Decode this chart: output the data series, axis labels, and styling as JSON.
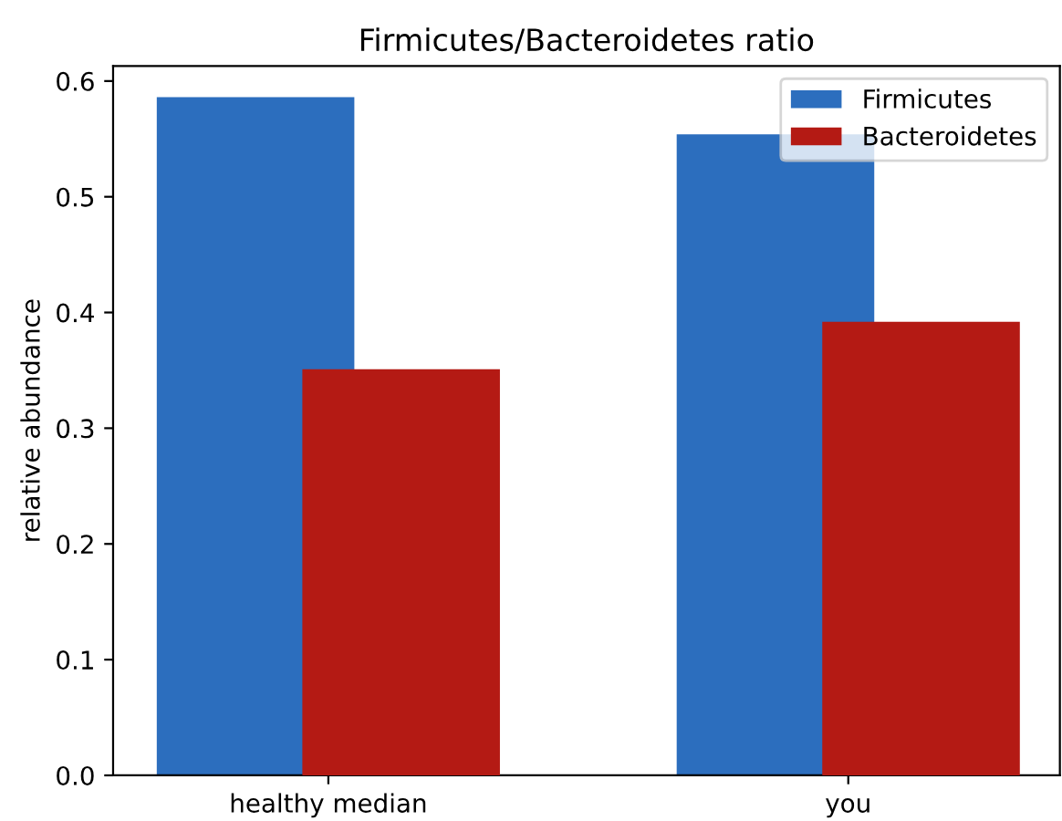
{
  "chart_data": {
    "type": "bar",
    "title": "Firmicutes/Bacteroidetes ratio",
    "ylabel": "relative abundance",
    "categories": [
      "healthy median",
      "you"
    ],
    "series": [
      {
        "name": "Firmicutes",
        "color": "#2c6ebe",
        "values": [
          0.586,
          0.554
        ]
      },
      {
        "name": "Bacteroidetes",
        "color": "#b41a14",
        "values": [
          0.351,
          0.392
        ]
      }
    ],
    "ylim": [
      0,
      0.613
    ],
    "yticks": [
      {
        "value": 0,
        "label": "0.0"
      },
      0.1,
      0.2,
      0.3,
      0.4,
      0.5,
      0.6
    ],
    "legend": "top right"
  }
}
